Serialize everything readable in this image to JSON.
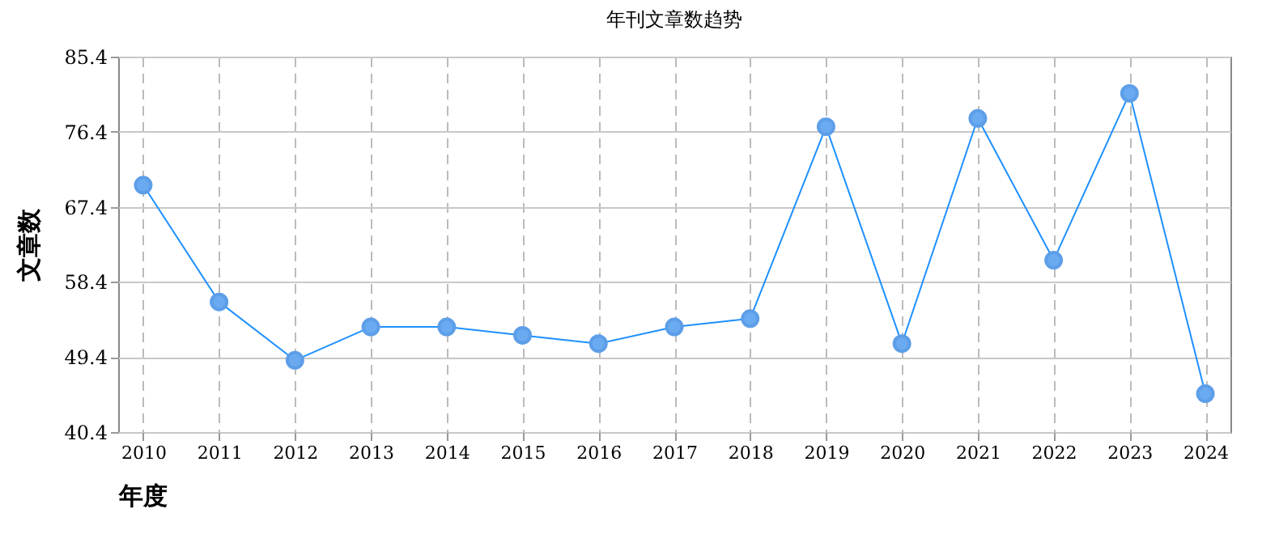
{
  "chart_data": {
    "type": "line",
    "title": "年刊文章数趋势",
    "xlabel": "年度",
    "ylabel": "文章数",
    "categories": [
      "2010",
      "2011",
      "2012",
      "2013",
      "2014",
      "2015",
      "2016",
      "2017",
      "2018",
      "2019",
      "2020",
      "2021",
      "2022",
      "2023",
      "2024"
    ],
    "series": [
      {
        "color": "#1e90ff",
        "values": [
          70,
          56,
          49,
          53,
          53,
          52,
          51,
          53,
          54,
          77,
          51,
          78,
          61,
          81,
          45
        ]
      }
    ],
    "ylim": [
      40.4,
      85.4
    ],
    "yticks": [
      40.4,
      49.4,
      58.4,
      67.4,
      76.4,
      85.4
    ],
    "grid": true,
    "marker": "circle",
    "line_style": "solid"
  }
}
